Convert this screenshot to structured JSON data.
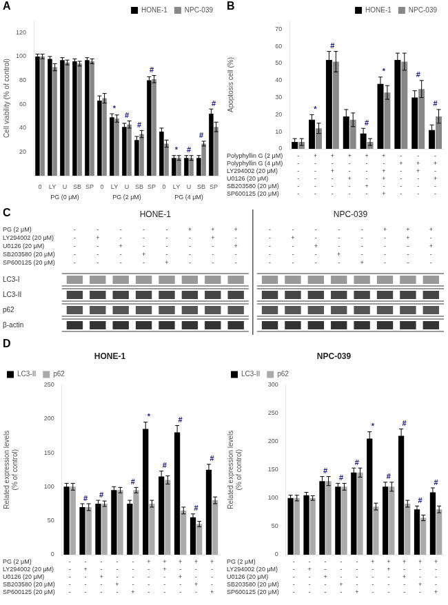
{
  "chart_data": [
    {
      "type": "bar",
      "panel": "A",
      "ylabel": "Cell viability (% of control)",
      "categories": [
        "0",
        "LY",
        "U",
        "SB",
        "SP",
        "0",
        "LY",
        "U",
        "SB",
        "SP",
        "0",
        "LY",
        "U",
        "SB",
        "SP"
      ],
      "groups": [
        "PG (0 μM)",
        "PG (2 μM)",
        "PG (4 μM)"
      ],
      "series": [
        {
          "name": "HONE-1",
          "color": "#000000",
          "values": [
            100,
            98,
            97,
            96,
            97,
            63,
            49,
            41,
            30,
            80,
            37,
            15,
            15,
            15,
            52
          ],
          "errors": [
            2,
            2,
            2,
            2,
            2,
            4,
            3,
            3,
            3,
            3,
            3,
            2,
            2,
            2,
            4
          ]
        },
        {
          "name": "NPC-039",
          "color": "#888888",
          "values": [
            100,
            91,
            95,
            94,
            96,
            65,
            48,
            43,
            35,
            81,
            27,
            15,
            15,
            27,
            41
          ],
          "errors": [
            2,
            3,
            2,
            2,
            2,
            4,
            3,
            3,
            3,
            3,
            3,
            2,
            2,
            2,
            4
          ]
        }
      ],
      "ylim": [
        0,
        130
      ],
      "yticks": [
        20,
        40,
        60,
        80,
        100,
        120
      ],
      "grid": false,
      "legend": "upper right",
      "annotations": [
        {
          "at": 6,
          "text": "*",
          "color": "#1a1a8c"
        },
        {
          "at": 11,
          "text": "*",
          "color": "#1a1a8c"
        },
        {
          "at": 7,
          "text": "#",
          "color": "#1a1a8c"
        },
        {
          "at": 8,
          "text": "#",
          "color": "#1a1a8c"
        },
        {
          "at": 9,
          "text": "#",
          "color": "#1a1a8c"
        },
        {
          "at": 12,
          "text": "#",
          "color": "#1a1a8c"
        },
        {
          "at": 13,
          "text": "#",
          "color": "#1a1a8c"
        },
        {
          "at": 14,
          "text": "#",
          "color": "#1a1a8c"
        }
      ]
    },
    {
      "type": "bar",
      "panel": "B",
      "ylabel": "Apoptosis cell (%)",
      "categories": [
        null,
        null,
        null,
        null,
        null,
        null,
        null,
        null,
        null
      ],
      "series": [
        {
          "name": "HONE-1",
          "color": "#000000",
          "values": [
            4,
            17,
            52,
            19,
            9,
            38,
            52,
            30,
            11
          ],
          "errors": [
            2,
            3,
            5,
            4,
            3,
            4,
            4,
            4,
            3
          ]
        },
        {
          "name": "NPC-039",
          "color": "#888888",
          "values": [
            4,
            12,
            51,
            17,
            4,
            33,
            51,
            35,
            19
          ],
          "errors": [
            2,
            3,
            6,
            4,
            2,
            4,
            5,
            5,
            4
          ]
        }
      ],
      "ylim": [
        0,
        75
      ],
      "yticks": [
        0,
        10,
        20,
        30,
        40,
        50,
        60,
        70
      ],
      "grid": false,
      "legend": "upper right",
      "tick_labels": "y",
      "annotations": [
        {
          "at": 1,
          "text": "*",
          "color": "#1a1a8c"
        },
        {
          "at": 5,
          "text": "*",
          "color": "#1a1a8c"
        },
        {
          "at": 2,
          "text": "#",
          "color": "#1a1a8c"
        },
        {
          "at": 4,
          "text": "#",
          "color": "#1a1a8c"
        },
        {
          "at": 7,
          "text": "#",
          "color": "#1a1a8c"
        },
        {
          "at": 8,
          "text": "#",
          "color": "#1a1a8c"
        }
      ],
      "row_labels": [
        "Polyphyllin G (2 μM)",
        "Polyphyllin G (4 μM)",
        "LY294002 (20 μM)",
        "U0126 (20 μM)",
        "SB203580 (20 μM)",
        "SP600125 (20 μM)"
      ],
      "col_labels": [
        [
          "-",
          "+",
          "+",
          "+",
          "+",
          "+",
          "-",
          "-",
          "-"
        ],
        [
          "-",
          "-",
          "-",
          "-",
          "-",
          "-",
          "+",
          "+",
          "+"
        ],
        [
          "-",
          "-",
          "+",
          "-",
          "-",
          "+",
          "-",
          "+",
          "-"
        ],
        [
          "-",
          "-",
          "-",
          "+",
          "-",
          "+",
          "-",
          "-",
          "+"
        ],
        [
          "-",
          "-",
          "-",
          "-",
          "+",
          "-",
          "-",
          "-",
          "-"
        ],
        [
          "-",
          "-",
          "-",
          "-",
          "-",
          "+",
          "-",
          "-",
          "-"
        ]
      ]
    },
    {
      "type": "blot",
      "panel": "C",
      "cell_lines": [
        "HONE-1",
        "NPC-039"
      ],
      "row_labels": [
        "PG (2 μM)",
        "LY294002 (20 μM)",
        "U0126 (20 μM)",
        "SB203580 (20 μM)",
        "SP600125 (20 μM)"
      ],
      "col_labels": [
        [
          [
            "-",
            "-",
            "-",
            "-",
            "-",
            "+",
            "+",
            "+"
          ],
          [
            "-",
            "+",
            "-",
            "-",
            "-",
            "-",
            "+",
            "-"
          ],
          [
            "-",
            "-",
            "+",
            "-",
            "-",
            "-",
            "-",
            "+"
          ],
          [
            "-",
            "-",
            "-",
            "+",
            "-",
            "-",
            "-",
            "-"
          ],
          [
            "-",
            "-",
            "-",
            "-",
            "+",
            "-",
            "-",
            "-"
          ]
        ],
        [
          [
            "-",
            "-",
            "-",
            "-",
            "-",
            "+",
            "+",
            "+"
          ],
          [
            "-",
            "+",
            "-",
            "-",
            "-",
            "-",
            "+",
            "-"
          ],
          [
            "-",
            "-",
            "+",
            "-",
            "-",
            "-",
            "-",
            "+"
          ],
          [
            "-",
            "-",
            "-",
            "+",
            "-",
            "-",
            "-",
            "-"
          ],
          [
            "-",
            "-",
            "-",
            "-",
            "+",
            "-",
            "-",
            "-"
          ]
        ]
      ],
      "bands": [
        {
          "name": "LC3-I",
          "color": "#999999"
        },
        {
          "name": "LC3-II",
          "color": "#444444"
        },
        {
          "name": "p62",
          "color": "#555555"
        },
        {
          "name": "β-actin",
          "color": "#333333"
        }
      ]
    },
    {
      "type": "bar",
      "panel": "D",
      "title": "HONE-1",
      "ylabel": "Related expression levels\n(% of control)",
      "categories": [
        null,
        null,
        null,
        null,
        null,
        null,
        null,
        null,
        null,
        null
      ],
      "series": [
        {
          "name": "LC3-II",
          "color": "#000000",
          "values": [
            100,
            70,
            75,
            95,
            75,
            185,
            115,
            180,
            55,
            125
          ],
          "errors": [
            5,
            5,
            5,
            5,
            5,
            10,
            8,
            10,
            5,
            8
          ]
        },
        {
          "name": "p62",
          "color": "#aaaaaa",
          "values": [
            100,
            70,
            75,
            95,
            95,
            75,
            110,
            65,
            45,
            80
          ],
          "errors": [
            5,
            5,
            4,
            4,
            4,
            5,
            6,
            5,
            4,
            5
          ]
        }
      ],
      "ylim": [
        0,
        250
      ],
      "yticks": [
        0,
        50,
        100,
        150,
        200,
        250
      ],
      "grid": false,
      "legend": "upper left",
      "tick_labels": "y",
      "annotations": [
        {
          "at": 5,
          "text": "*",
          "color": "#1a1a8c"
        },
        {
          "at": 1,
          "text": "#",
          "color": "#1a1a8c"
        },
        {
          "at": 2,
          "text": "#",
          "color": "#1a1a8c"
        },
        {
          "at": 4,
          "text": "#",
          "color": "#1a1a8c"
        },
        {
          "at": 6,
          "text": "#",
          "color": "#1a1a8c"
        },
        {
          "at": 7,
          "text": "#",
          "color": "#1a1a8c"
        },
        {
          "at": 8,
          "text": "#",
          "color": "#1a1a8c"
        },
        {
          "at": 9,
          "text": "#",
          "color": "#1a1a8c"
        }
      ],
      "row_labels": [
        "PG (2 μM)",
        "LY294002 (20 μM)",
        "U0126 (20 μM)",
        "SB203580 (20 μM)",
        "SP600125 (20 μM)"
      ],
      "col_labels": [
        [
          "-",
          "-",
          "-",
          "-",
          "-",
          "+",
          "+",
          "+",
          "+",
          "+"
        ],
        [
          "-",
          "+",
          "-",
          "-",
          "-",
          "-",
          "+",
          "-",
          "-",
          "-"
        ],
        [
          "-",
          "-",
          "+",
          "-",
          "-",
          "-",
          "-",
          "+",
          "-",
          "-"
        ],
        [
          "-",
          "-",
          "-",
          "+",
          "-",
          "-",
          "-",
          "-",
          "+",
          "-"
        ],
        [
          "-",
          "-",
          "-",
          "-",
          "+",
          "-",
          "-",
          "-",
          "-",
          "+"
        ]
      ]
    },
    {
      "type": "bar",
      "title": "NPC-039",
      "ylabel": "Related expression levels\n(% of control)",
      "categories": [
        null,
        null,
        null,
        null,
        null,
        null,
        null,
        null,
        null,
        null
      ],
      "series": [
        {
          "name": "LC3-II",
          "color": "#000000",
          "values": [
            100,
            105,
            130,
            120,
            145,
            205,
            120,
            210,
            80,
            110
          ],
          "errors": [
            5,
            5,
            8,
            6,
            8,
            12,
            8,
            12,
            6,
            8
          ]
        },
        {
          "name": "p62",
          "color": "#aaaaaa",
          "values": [
            100,
            100,
            130,
            120,
            145,
            85,
            120,
            90,
            65,
            80
          ],
          "errors": [
            5,
            4,
            8,
            6,
            8,
            6,
            8,
            6,
            5,
            6
          ]
        }
      ],
      "ylim": [
        0,
        300
      ],
      "yticks": [
        0,
        50,
        100,
        150,
        200,
        250,
        300
      ],
      "grid": false,
      "legend": "upper left",
      "tick_labels": "y",
      "annotations": [
        {
          "at": 5,
          "text": "*",
          "color": "#1a1a8c"
        },
        {
          "at": 2,
          "text": "#",
          "color": "#1a1a8c"
        },
        {
          "at": 3,
          "text": "#",
          "color": "#1a1a8c"
        },
        {
          "at": 4,
          "text": "#",
          "color": "#1a1a8c"
        },
        {
          "at": 6,
          "text": "#",
          "color": "#1a1a8c"
        },
        {
          "at": 7,
          "text": "#",
          "color": "#1a1a8c"
        },
        {
          "at": 8,
          "text": "#",
          "color": "#1a1a8c"
        },
        {
          "at": 9,
          "text": "#",
          "color": "#1a1a8c"
        }
      ],
      "row_labels": [
        "PG (2 μM)",
        "LY294002 (20 μM)",
        "U0126 (20 μM)",
        "SB203580 (20 μM)",
        "SP600125 (20 μM)"
      ],
      "col_labels": [
        [
          "-",
          "-",
          "-",
          "-",
          "-",
          "+",
          "+",
          "+",
          "+",
          "+"
        ],
        [
          "-",
          "+",
          "-",
          "-",
          "-",
          "-",
          "+",
          "-",
          "-",
          "-"
        ],
        [
          "-",
          "-",
          "+",
          "-",
          "-",
          "-",
          "-",
          "+",
          "-",
          "-"
        ],
        [
          "-",
          "-",
          "-",
          "+",
          "-",
          "-",
          "-",
          "-",
          "+",
          "-"
        ],
        [
          "-",
          "-",
          "-",
          "-",
          "+",
          "-",
          "-",
          "-",
          "-",
          "+"
        ]
      ]
    }
  ]
}
